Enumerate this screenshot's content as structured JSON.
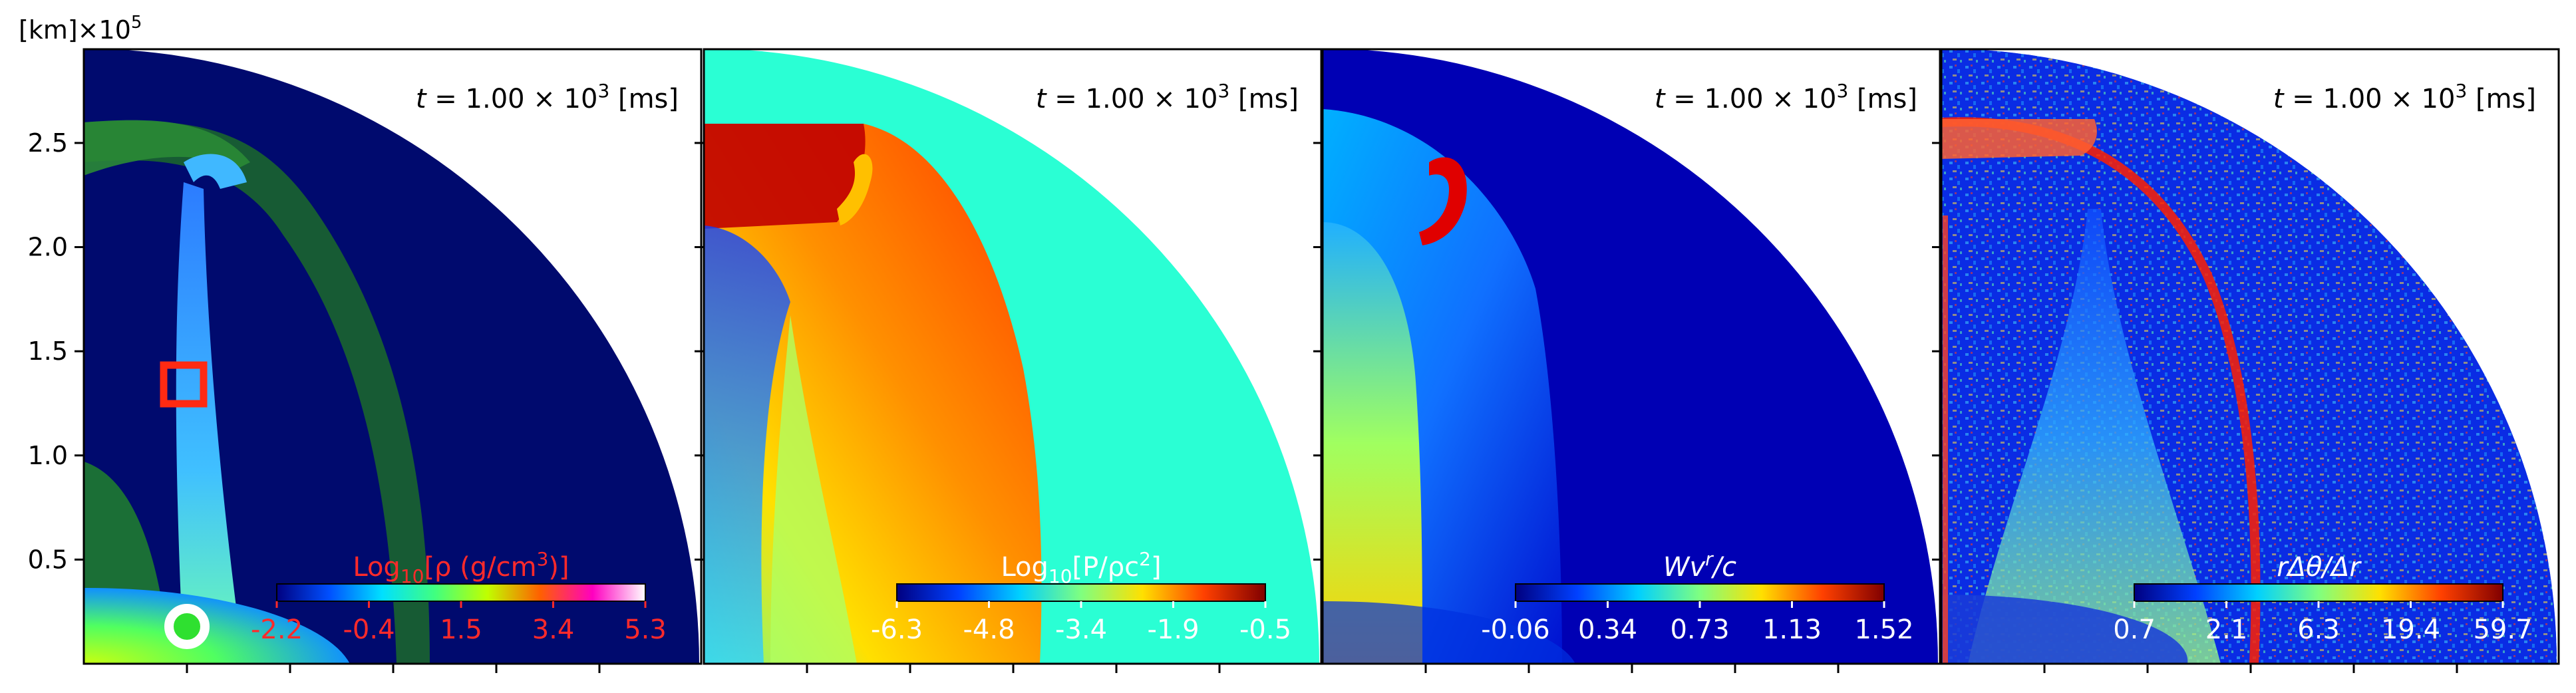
{
  "figure": {
    "y_unit_label": "[km]×10",
    "y_unit_exponent": "5"
  },
  "chart_data": [
    {
      "type": "heatmap",
      "panel": "density",
      "annotation": {
        "prefix": "t = 1.00 × 10",
        "exponent": "3",
        "suffix": " [ms]"
      },
      "yticks": [
        0.5,
        1.0,
        1.5,
        2.0,
        2.5
      ],
      "ytick_labels": [
        "0.5",
        "1.0",
        "1.5",
        "2.0",
        "2.5"
      ],
      "ylim": [
        0,
        2.95
      ],
      "xlim": [
        0,
        2.95
      ],
      "colorbar": {
        "label_prefix": "Log",
        "label_sub": "10",
        "label_main": "[ρ (g/cm",
        "label_sup": "3",
        "label_end": ")]",
        "tick_labels": [
          "-2.2",
          "-0.4",
          "1.5",
          "3.4",
          "5.3"
        ],
        "colormap": [
          "#000080",
          "#0050ff",
          "#00e0ff",
          "#40ff80",
          "#c0ff00",
          "#ff6000",
          "#ff00c0",
          "#ffffff"
        ],
        "label_color": "#ff2a2a"
      },
      "colors": {
        "background": "#000a6e",
        "shell": "#1b6a2a",
        "jet": "#35b6ff",
        "core": "#7fff2a"
      }
    },
    {
      "type": "heatmap",
      "panel": "pressure",
      "annotation": {
        "prefix": "t = 1.00 × 10",
        "exponent": "3",
        "suffix": " [ms]"
      },
      "colorbar": {
        "label_prefix": "Log",
        "label_sub": "10",
        "label_main": "[P/ρc",
        "label_sup": "2",
        "label_end": "]",
        "tick_labels": [
          "-6.3",
          "-4.8",
          "-3.4",
          "-1.9",
          "-0.5"
        ],
        "colormap": [
          "#000080",
          "#0040ff",
          "#00d0ff",
          "#7fff80",
          "#ffe000",
          "#ff4000",
          "#800000"
        ],
        "label_color": "#ffffff"
      },
      "colors": {
        "background": "#2affd4",
        "cocoon": "#ff3a0a",
        "cap": "#c00000",
        "base": "#9aff60"
      }
    },
    {
      "type": "heatmap",
      "panel": "velocity",
      "annotation": {
        "prefix": "t = 1.00 × 10",
        "exponent": "3",
        "suffix": " [ms]"
      },
      "colorbar": {
        "label_main": "Wv",
        "label_sup": "r",
        "label_end": "/c",
        "tick_labels": [
          "-0.06",
          "0.34",
          "0.73",
          "1.13",
          "1.52"
        ],
        "colormap": [
          "#000080",
          "#0040ff",
          "#00d0ff",
          "#7fff80",
          "#ffe000",
          "#ff4000",
          "#800000"
        ],
        "label_color": "#ffffff"
      },
      "colors": {
        "background": "#0000b4",
        "jet": "#10a0ff",
        "tip": "#e00000",
        "base": "#ffd000"
      }
    },
    {
      "type": "heatmap",
      "panel": "resolution",
      "annotation": {
        "prefix": "t = 1.00 × 10",
        "exponent": "3",
        "suffix": " [ms]"
      },
      "colorbar": {
        "label_main": "rΔθ/Δr",
        "tick_labels": [
          "0.7",
          "2.1",
          "6.3",
          "19.4",
          "59.7"
        ],
        "colormap": [
          "#000080",
          "#0040ff",
          "#00d0ff",
          "#7fff80",
          "#ffe000",
          "#ff4000",
          "#800000"
        ],
        "label_color": "#ffffff"
      },
      "colors": {
        "background": "#0a28e0",
        "speckle": "#30c0ff",
        "edge": "#ff2000"
      }
    }
  ]
}
